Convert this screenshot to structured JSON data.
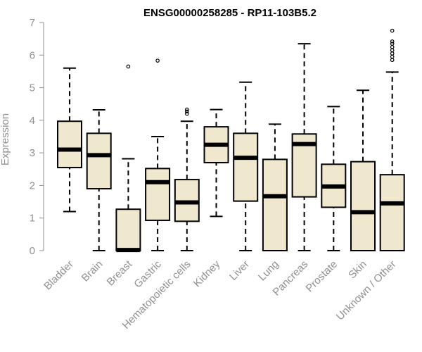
{
  "chart_data": {
    "type": "box",
    "title": "ENSG00000258285 - RP11-103B5.2",
    "xlabel": "",
    "ylabel": "Expression",
    "ylim": [
      0,
      7
    ],
    "yticks": [
      "0",
      "1",
      "2",
      "3",
      "4",
      "5",
      "6",
      "7"
    ],
    "box_fill": "#efe8cf",
    "categories": [
      "Bladder",
      "Brain",
      "Breast",
      "Gastric",
      "Hematopoietic cells",
      "Kidney",
      "Liver",
      "Lung",
      "Pancreas",
      "Prostate",
      "Skin",
      "Unknown / Other"
    ],
    "boxes": [
      {
        "whisker_low": 1.2,
        "q1": 2.55,
        "median": 3.1,
        "q3": 3.97,
        "whisker_high": 5.6,
        "outliers": []
      },
      {
        "whisker_low": 0.0,
        "q1": 1.9,
        "median": 2.93,
        "q3": 3.6,
        "whisker_high": 4.32,
        "outliers": []
      },
      {
        "whisker_low": 0.0,
        "q1": 0.0,
        "median": 0.02,
        "q3": 1.27,
        "whisker_high": 2.82,
        "outliers": [
          5.65
        ]
      },
      {
        "whisker_low": 0.0,
        "q1": 0.93,
        "median": 2.1,
        "q3": 2.52,
        "whisker_high": 3.5,
        "outliers": [
          5.83
        ]
      },
      {
        "whisker_low": 0.0,
        "q1": 0.9,
        "median": 1.48,
        "q3": 2.18,
        "whisker_high": 3.97,
        "outliers": [
          4.2,
          4.27,
          4.33
        ]
      },
      {
        "whisker_low": 1.05,
        "q1": 2.7,
        "median": 3.25,
        "q3": 3.8,
        "whisker_high": 4.33,
        "outliers": []
      },
      {
        "whisker_low": 0.0,
        "q1": 1.52,
        "median": 2.85,
        "q3": 3.6,
        "whisker_high": 5.17,
        "outliers": []
      },
      {
        "whisker_low": 0.0,
        "q1": 0.0,
        "median": 1.67,
        "q3": 2.8,
        "whisker_high": 3.88,
        "outliers": []
      },
      {
        "whisker_low": 0.0,
        "q1": 1.65,
        "median": 3.27,
        "q3": 3.58,
        "whisker_high": 6.35,
        "outliers": []
      },
      {
        "whisker_low": 0.0,
        "q1": 1.33,
        "median": 1.97,
        "q3": 2.65,
        "whisker_high": 4.42,
        "outliers": []
      },
      {
        "whisker_low": 0.0,
        "q1": 0.0,
        "median": 1.18,
        "q3": 2.73,
        "whisker_high": 4.92,
        "outliers": []
      },
      {
        "whisker_low": 0.0,
        "q1": 0.0,
        "median": 1.45,
        "q3": 2.33,
        "whisker_high": 5.48,
        "outliers": [
          5.85,
          5.95,
          6.05,
          6.15,
          6.25,
          6.35,
          6.42,
          6.75
        ]
      }
    ]
  }
}
